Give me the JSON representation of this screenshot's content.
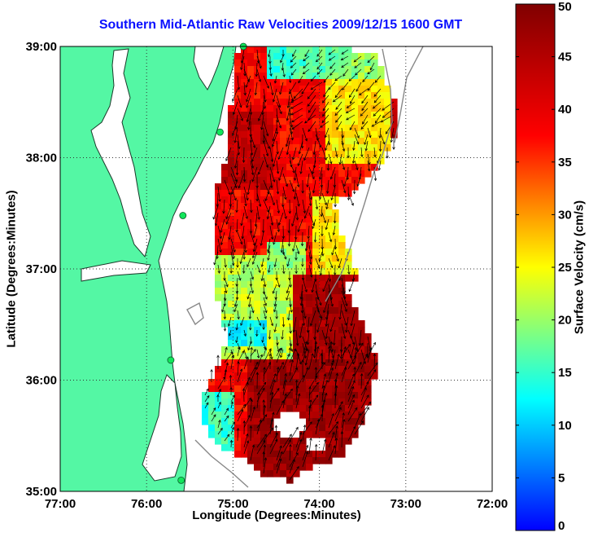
{
  "chart_data": {
    "type": "heatmap",
    "title": "Southern Mid-Atlantic Raw Velocities 2009/12/15 1600 GMT",
    "xlabel": "Longitude (Degrees:Minutes)",
    "ylabel": "Latitude (Degrees:Minutes)",
    "colorbar_label": "Surface Velocity (cm/s)",
    "xlim": [
      -77,
      -72
    ],
    "ylim": [
      35,
      39
    ],
    "x_ticks": [
      "77:00",
      "76:00",
      "75:00",
      "74:00",
      "73:00",
      "72:00"
    ],
    "y_ticks": [
      "35:00",
      "36:00",
      "37:00",
      "38:00",
      "39:00"
    ],
    "colorbar_range": [
      0,
      50
    ],
    "colorbar_ticks": [
      "0",
      "5",
      "10",
      "15",
      "20",
      "25",
      "30",
      "35",
      "40",
      "45",
      "50"
    ],
    "grid": "dotted",
    "land_color": "#54f7a4",
    "station_color": "#11e65a",
    "stations": [
      {
        "lon": -74.88,
        "lat": 39.0
      },
      {
        "lon": -75.15,
        "lat": 38.23
      },
      {
        "lon": -75.58,
        "lat": 37.48
      },
      {
        "lon": -75.72,
        "lat": 36.18
      },
      {
        "lon": -75.6,
        "lat": 35.1
      }
    ]
  },
  "colors": {
    "title": "#0a10ff",
    "land": "#54f7a4",
    "station": "#11e65a"
  }
}
